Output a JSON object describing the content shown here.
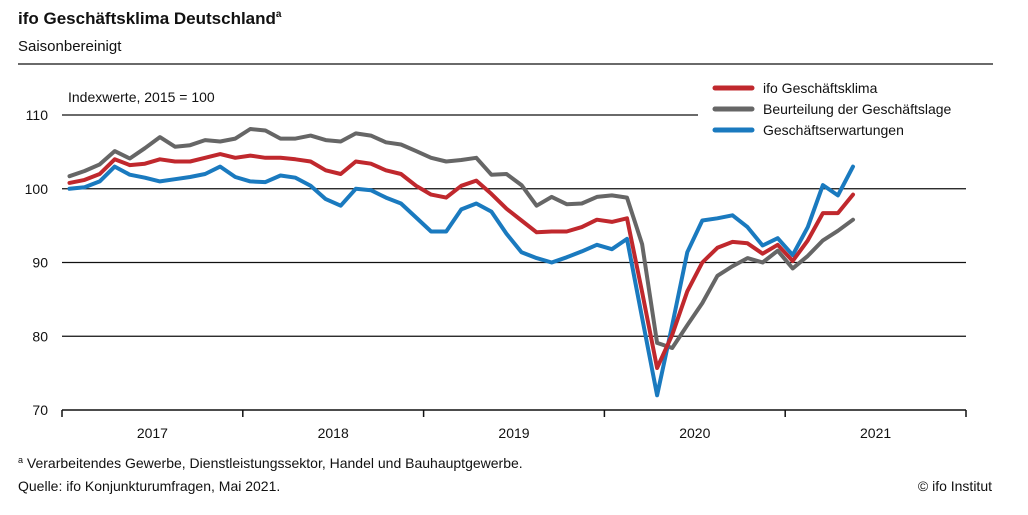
{
  "header": {
    "title": "ifo Geschäftsklima Deutschland",
    "title_sup": "a",
    "subtitle": "Saisonbereinigt"
  },
  "footer": {
    "footnote_mark": "a",
    "footnote": "Verarbeitendes Gewerbe, Dienstleistungssektor, Handel und Bauhauptgewerbe.",
    "source": "Quelle: ifo Konjunkturumfragen, Mai 2021.",
    "copyright": "© ifo Institut"
  },
  "chart_data": {
    "type": "line",
    "unit_label": "Indexwerte, 2015 = 100",
    "x_start": "2017-01",
    "x_end": "2021-05",
    "x_frequency": "monthly",
    "x_tick_labels": [
      "2017",
      "2018",
      "2019",
      "2020",
      "2021"
    ],
    "y_ticks": [
      70,
      80,
      90,
      100,
      110
    ],
    "ylim": [
      70,
      110
    ],
    "grid": "horizontal",
    "legend_placement": "top-right",
    "series": [
      {
        "name": "ifo Geschäftsklima",
        "color": "#c0282d",
        "values": [
          100.8,
          101.2,
          102.0,
          104.0,
          103.2,
          103.4,
          104.0,
          103.7,
          103.7,
          104.2,
          104.7,
          104.2,
          104.5,
          104.2,
          104.2,
          104.0,
          103.7,
          102.5,
          102.0,
          103.7,
          103.4,
          102.5,
          102.0,
          100.4,
          99.2,
          98.8,
          100.4,
          101.1,
          99.3,
          97.3,
          95.7,
          94.1,
          94.2,
          94.2,
          94.8,
          95.8,
          95.5,
          96.0,
          86.0,
          75.7,
          80.2,
          86.1,
          90.0,
          92.0,
          92.8,
          92.6,
          91.2,
          92.4,
          90.2,
          93.0,
          96.7,
          96.7,
          99.2
        ]
      },
      {
        "name": "Beurteilung der Geschäftslage",
        "color": "#666666",
        "values": [
          101.7,
          102.4,
          103.3,
          105.1,
          104.1,
          105.5,
          107.0,
          105.7,
          105.9,
          106.6,
          106.4,
          106.8,
          108.1,
          107.9,
          106.8,
          106.8,
          107.2,
          106.6,
          106.4,
          107.5,
          107.2,
          106.3,
          106.0,
          105.1,
          104.2,
          103.7,
          103.9,
          104.2,
          101.9,
          102.0,
          100.5,
          97.7,
          98.9,
          97.9,
          98.0,
          98.9,
          99.1,
          98.8,
          92.5,
          79.1,
          78.4,
          81.5,
          84.5,
          88.2,
          89.5,
          90.6,
          90.0,
          91.6,
          89.2,
          90.9,
          93.0,
          94.3,
          95.8
        ]
      },
      {
        "name": "Geschäftserwartungen",
        "color": "#1a7abf",
        "values": [
          100.0,
          100.2,
          101.0,
          103.0,
          101.9,
          101.5,
          101.0,
          101.3,
          101.6,
          102.0,
          103.0,
          101.6,
          101.0,
          100.9,
          101.8,
          101.5,
          100.4,
          98.6,
          97.7,
          100.0,
          99.8,
          98.8,
          98.0,
          96.1,
          94.2,
          94.2,
          97.2,
          98.0,
          96.9,
          93.9,
          91.4,
          90.6,
          90.0,
          90.7,
          91.5,
          92.4,
          91.8,
          93.2,
          82.5,
          72.0,
          81.5,
          91.4,
          95.7,
          96.0,
          96.4,
          94.8,
          92.3,
          93.3,
          91.0,
          94.8,
          100.5,
          99.1,
          103.0
        ]
      }
    ]
  }
}
